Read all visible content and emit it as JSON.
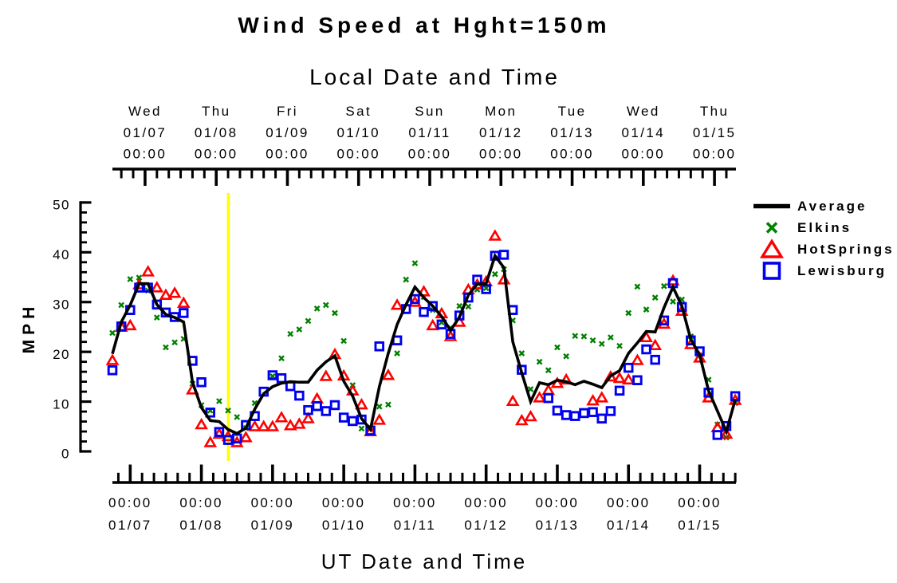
{
  "chart_data": {
    "type": "line+scatter",
    "title": "Wind Speed at Hght=150m",
    "top_axis_label": "Local Date and Time",
    "bottom_axis_label": "UT Date and Time",
    "ylabel": "MPH",
    "ylim": [
      0,
      50
    ],
    "yticks": [
      0,
      10,
      20,
      30,
      40,
      50
    ],
    "y_minor_step": 2,
    "x_minor_step_hours": 4,
    "time_step_hours": 3,
    "x_range_hours_ut": [
      -6,
      204
    ],
    "x_range_note": "hours relative to 01/07 00:00 UT; axis spans 01/06 18:00 UT to 01/15 12:00 UT",
    "local_utc_offset_hours": -5,
    "top_axis_days": [
      {
        "weekday": "Wed",
        "date": "01/07",
        "time": "00:00"
      },
      {
        "weekday": "Thu",
        "date": "01/08",
        "time": "00:00"
      },
      {
        "weekday": "Fri",
        "date": "01/09",
        "time": "00:00"
      },
      {
        "weekday": "Sat",
        "date": "01/10",
        "time": "00:00"
      },
      {
        "weekday": "Sun",
        "date": "01/11",
        "time": "00:00"
      },
      {
        "weekday": "Mon",
        "date": "01/12",
        "time": "00:00"
      },
      {
        "weekday": "Tue",
        "date": "01/13",
        "time": "00:00"
      },
      {
        "weekday": "Wed",
        "date": "01/14",
        "time": "00:00"
      },
      {
        "weekday": "Thu",
        "date": "01/15",
        "time": "00:00"
      }
    ],
    "bottom_axis_days": [
      {
        "time": "00:00",
        "date": "01/07"
      },
      {
        "time": "00:00",
        "date": "01/08"
      },
      {
        "time": "00:00",
        "date": "01/09"
      },
      {
        "time": "00:00",
        "date": "01/10"
      },
      {
        "time": "00:00",
        "date": "01/11"
      },
      {
        "time": "00:00",
        "date": "01/12"
      },
      {
        "time": "00:00",
        "date": "01/13"
      },
      {
        "time": "00:00",
        "date": "01/14"
      },
      {
        "time": "00:00",
        "date": "01/15"
      }
    ],
    "event_line": {
      "color": "#FFFF00",
      "hours_ut": 33.1
    },
    "axis_color": "#000000",
    "series": [
      {
        "name": "Average",
        "type": "line",
        "marker": "line",
        "color": "#000000",
        "values": [
          19.6,
          26.0,
          29.4,
          33.7,
          33.7,
          29.5,
          27.5,
          26.9,
          26.0,
          13.9,
          8.8,
          6.2,
          6.0,
          4.4,
          3.6,
          4.7,
          8.5,
          11.6,
          13.0,
          13.7,
          14.0,
          13.9,
          13.9,
          16.3,
          18.0,
          19.2,
          14.1,
          11.1,
          6.6,
          4.4,
          13.0,
          19.7,
          25.5,
          29.5,
          33.0,
          30.9,
          29.2,
          27.1,
          24.3,
          27.0,
          31.4,
          33.6,
          33.7,
          39.3,
          36.9,
          22.0,
          15.8,
          10.0,
          13.8,
          13.4,
          14.3,
          14.0,
          13.4,
          14.1,
          13.5,
          12.8,
          15.2,
          16.2,
          19.7,
          21.8,
          24.1,
          24.0,
          28.9,
          33.0,
          29.2,
          22.5,
          19.4,
          12.2,
          null,
          4.0,
          10.4
        ]
      },
      {
        "name": "Elkins",
        "type": "scatter",
        "marker": "x",
        "color": "#008000",
        "values": [
          23.8,
          29.4,
          34.6,
          34.9,
          32.3,
          26.9,
          20.9,
          21.9,
          22.6,
          13.6,
          9.3,
          8.2,
          10.1,
          8.2,
          6.9,
          4.7,
          9.7,
          null,
          15.1,
          18.7,
          23.6,
          24.5,
          26.2,
          28.7,
          29.4,
          27.8,
          22.2,
          13.3,
          4.6,
          4.8,
          9.0,
          9.4,
          19.7,
          34.5,
          37.8,
          31.0,
          28.4,
          25.9,
          24.8,
          29.2,
          29.1,
          32.5,
          32.8,
          35.6,
          36.6,
          26.3,
          19.7,
          12.5,
          18.0,
          16.3,
          20.9,
          19.1,
          23.2,
          23.1,
          22.3,
          21.6,
          22.9,
          21.2,
          27.8,
          33.1,
          28.5,
          30.9,
          33.2,
          30.1,
          30.5,
          23.1,
          19.3,
          14.4,
          5.4,
          2.8,
          9.7
        ]
      },
      {
        "name": "HotSprings",
        "type": "scatter",
        "marker": "triangle",
        "color": "#FF0000",
        "values": [
          18.3,
          25.0,
          25.3,
          33.5,
          36.1,
          32.9,
          31.4,
          31.8,
          29.8,
          12.4,
          5.4,
          1.8,
          3.5,
          3.0,
          1.8,
          2.8,
          5.0,
          5.0,
          5.0,
          6.8,
          5.2,
          5.5,
          6.6,
          10.6,
          15.1,
          19.5,
          15.2,
          12.2,
          9.4,
          4.0,
          6.3,
          15.3,
          29.4,
          null,
          30.0,
          32.1,
          25.3,
          27.7,
          23.1,
          26.0,
          32.5,
          33.5,
          34.1,
          43.3,
          34.5,
          10.1,
          6.2,
          7.0,
          10.8,
          12.3,
          13.7,
          14.4,
          null,
          null,
          10.2,
          10.8,
          15.0,
          14.7,
          14.4,
          18.3,
          22.9,
          21.3,
          25.6,
          34.3,
          28.2,
          21.5,
          18.8,
          10.8,
          4.8,
          3.5,
          10.3
        ]
      },
      {
        "name": "Lewisburg",
        "type": "scatter",
        "marker": "square",
        "color": "#0000EE",
        "values": [
          16.3,
          25.1,
          28.4,
          32.9,
          32.9,
          29.5,
          27.9,
          27.0,
          27.8,
          18.2,
          13.9,
          7.8,
          3.9,
          2.3,
          2.6,
          5.3,
          7.1,
          12.0,
          15.3,
          14.7,
          13.1,
          11.2,
          8.3,
          9.1,
          8.1,
          9.3,
          6.8,
          6.1,
          6.4,
          4.2,
          21.1,
          null,
          22.3,
          28.6,
          30.6,
          28.0,
          29.2,
          25.5,
          23.6,
          27.3,
          30.9,
          34.5,
          32.6,
          39.3,
          39.5,
          28.4,
          16.4,
          null,
          null,
          10.7,
          8.2,
          7.3,
          7.1,
          7.7,
          7.9,
          6.6,
          8.1,
          12.2,
          16.8,
          14.3,
          20.5,
          18.4,
          26.3,
          33.8,
          29.0,
          22.3,
          20.1,
          11.8,
          3.3,
          5.1,
          11.1
        ]
      }
    ]
  },
  "legend": {
    "items": [
      {
        "label": "Average"
      },
      {
        "label": "Elkins"
      },
      {
        "label": "HotSprings"
      },
      {
        "label": "Lewisburg"
      }
    ]
  }
}
